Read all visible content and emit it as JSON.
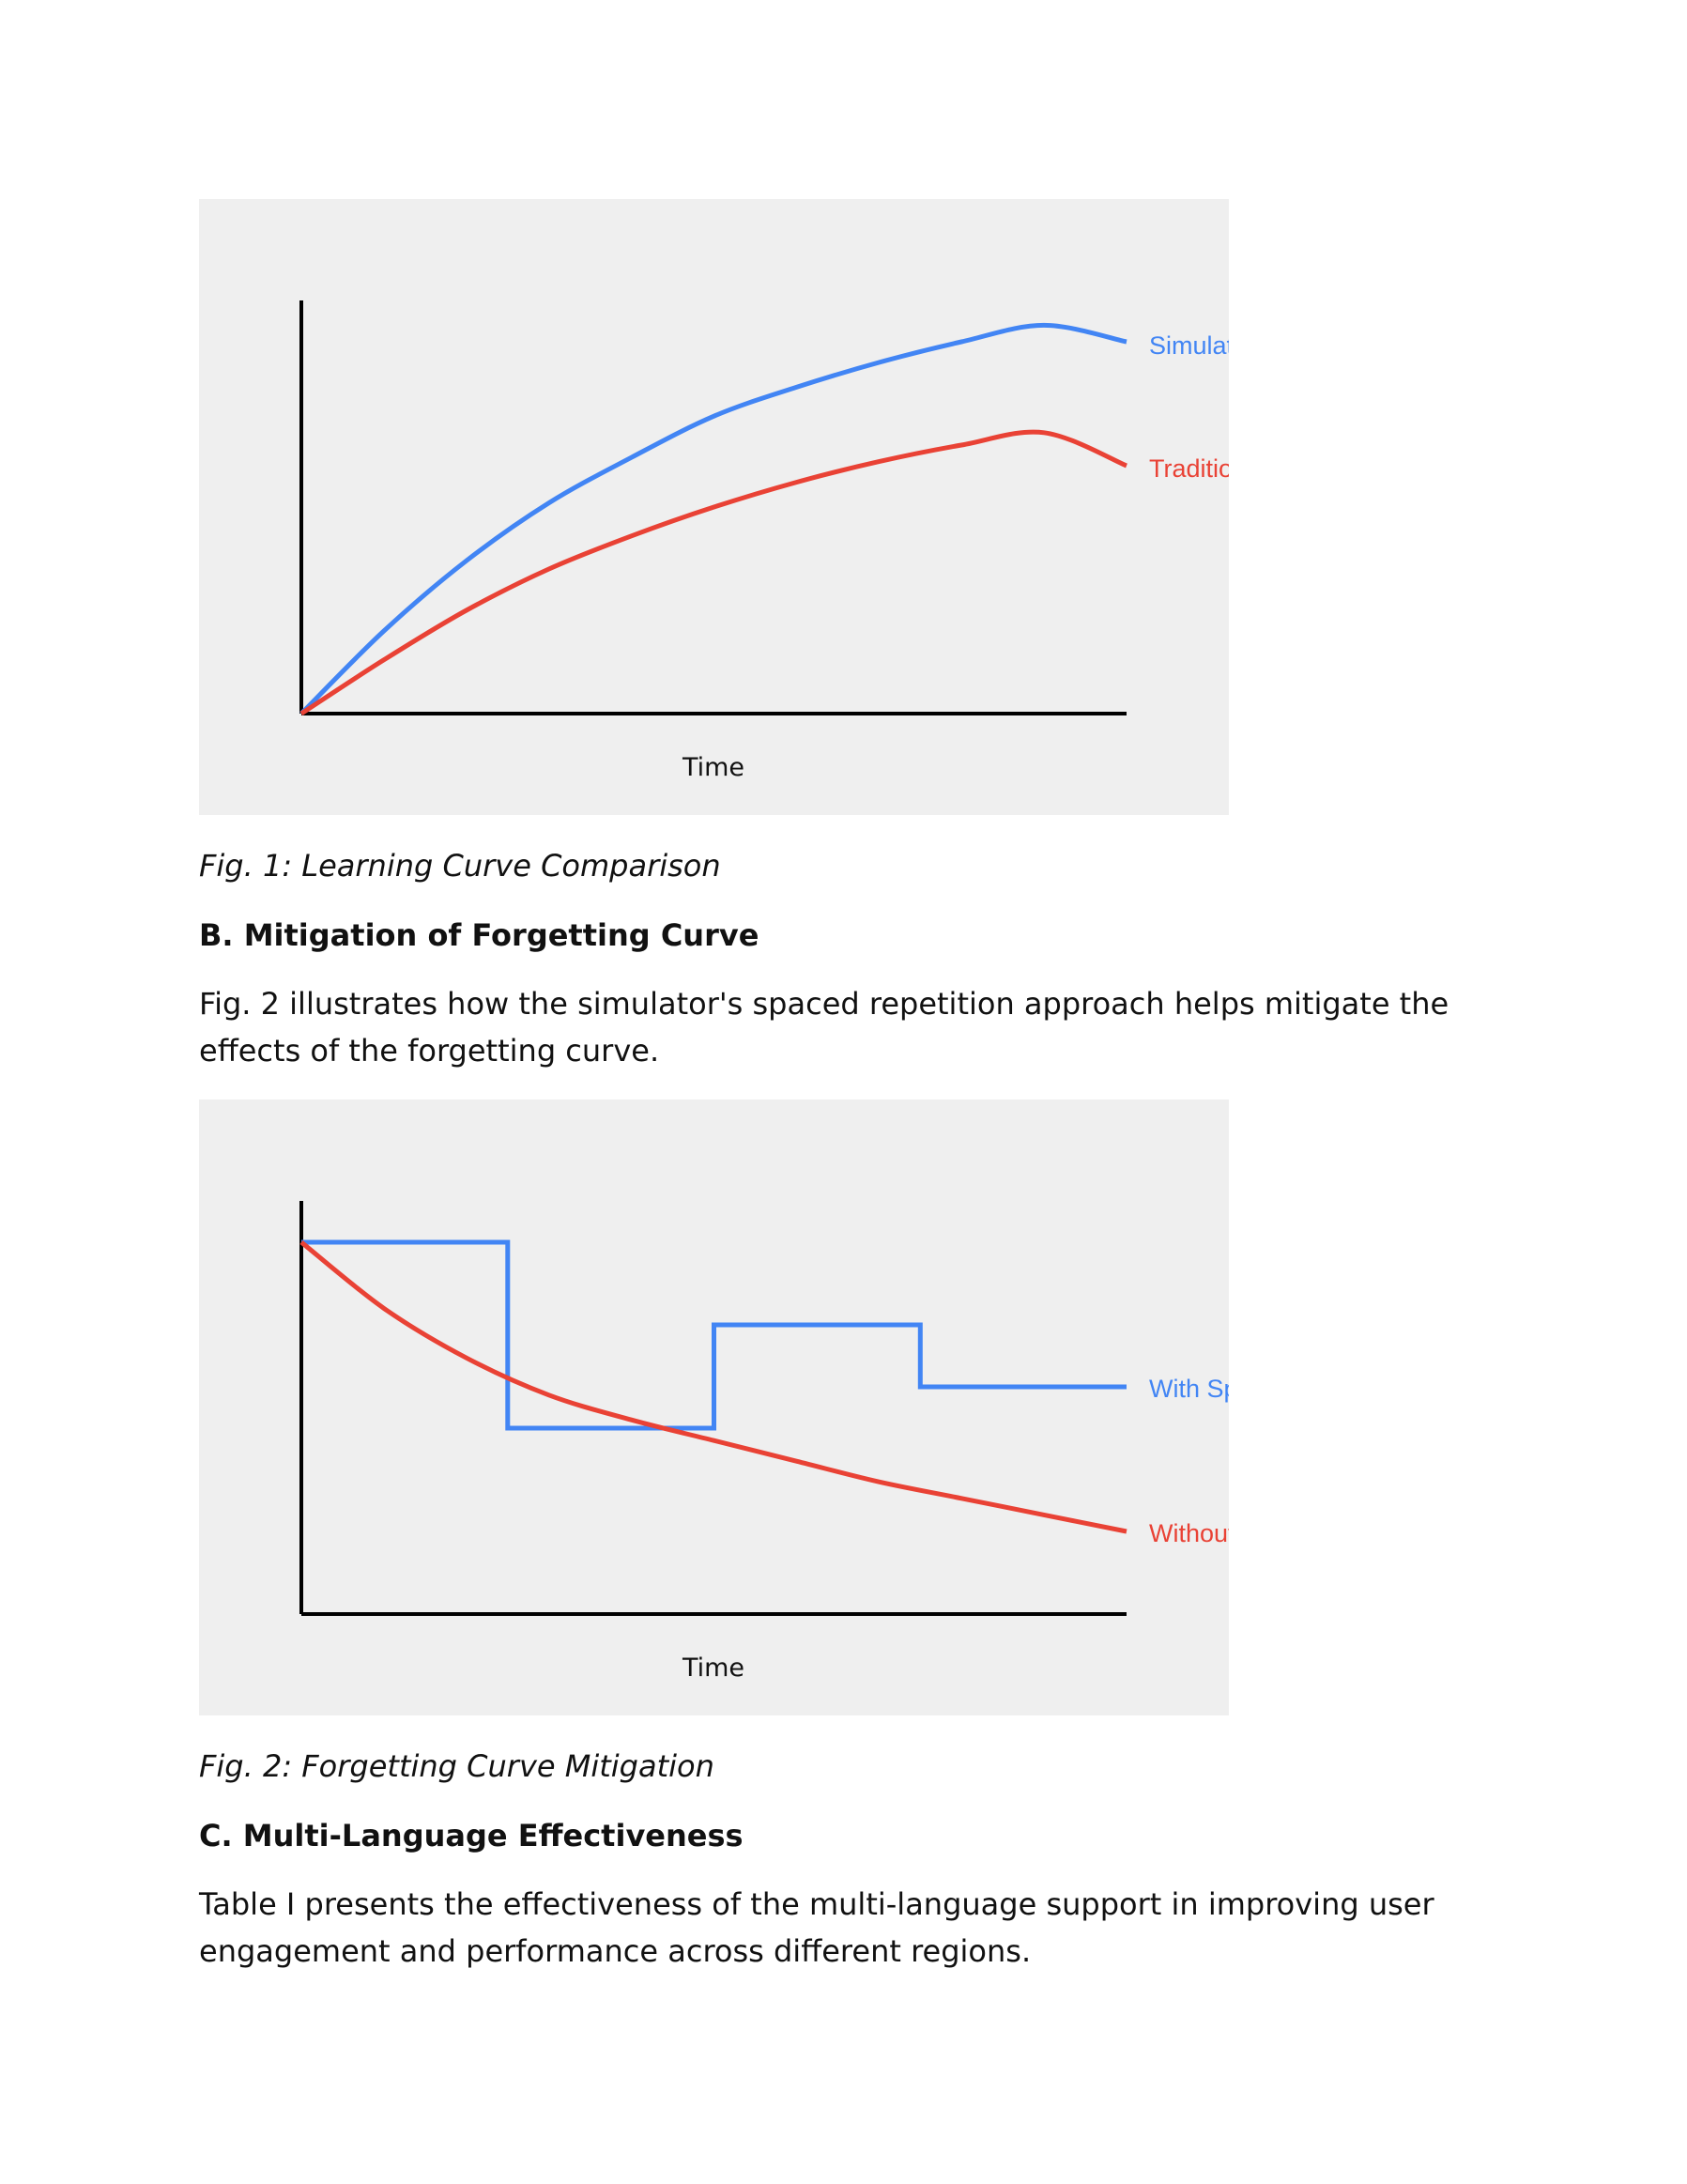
{
  "figure1": {
    "caption": "Fig. 1: Learning Curve Comparison",
    "x_axis_label": "Time",
    "label_simulator": "Simulat",
    "label_traditional": "Traditio"
  },
  "section_b": {
    "heading": "B. Mitigation of Forgetting Curve",
    "body": "Fig. 2 illustrates how the simulator's spaced repetition approach helps mitigate the effects of the forgetting curve."
  },
  "figure2": {
    "caption": "Fig. 2: Forgetting Curve Mitigation",
    "x_axis_label": "Time",
    "label_with": "With Sp",
    "label_without": "Without"
  },
  "section_c": {
    "heading": "C. Multi-Language Effectiveness",
    "body": "Table I presents the effectiveness of the multi-language support in improving user engagement and performance across different regions."
  },
  "colors": {
    "blue": "#4285f4",
    "red": "#e94235",
    "panel": "#efefef",
    "axis": "#000000"
  },
  "chart_data": [
    {
      "type": "line",
      "xlabel": "Time",
      "ylabel": "",
      "xlim": [
        0,
        1
      ],
      "ylim": [
        0,
        1
      ],
      "grid": false,
      "legend": "end-of-line labels (right)",
      "series": [
        {
          "name": "Simulat",
          "color": "#4285f4",
          "x": [
            0,
            0.1,
            0.2,
            0.3,
            0.4,
            0.5,
            0.6,
            0.7,
            0.8,
            0.9,
            1.0
          ],
          "y": [
            0,
            0.2,
            0.37,
            0.51,
            0.62,
            0.72,
            0.79,
            0.85,
            0.9,
            0.94,
            0.9
          ]
        },
        {
          "name": "Traditio",
          "color": "#e94235",
          "x": [
            0,
            0.1,
            0.2,
            0.3,
            0.4,
            0.5,
            0.6,
            0.7,
            0.8,
            0.9,
            1.0
          ],
          "y": [
            0,
            0.13,
            0.25,
            0.35,
            0.43,
            0.5,
            0.56,
            0.61,
            0.65,
            0.68,
            0.6
          ]
        }
      ]
    },
    {
      "type": "line",
      "xlabel": "Time",
      "ylabel": "",
      "xlim": [
        0,
        1
      ],
      "ylim": [
        0,
        1
      ],
      "grid": false,
      "legend": "end-of-line labels (right)",
      "series": [
        {
          "name": "With Sp",
          "color": "#4285f4",
          "step": true,
          "x": [
            0,
            0.25,
            0.25,
            0.5,
            0.5,
            0.75,
            0.75,
            1.0
          ],
          "y": [
            0.9,
            0.9,
            0.45,
            0.45,
            0.7,
            0.7,
            0.55,
            0.55
          ]
        },
        {
          "name": "Without",
          "color": "#e94235",
          "x": [
            0,
            0.1,
            0.2,
            0.3,
            0.4,
            0.5,
            0.6,
            0.7,
            0.8,
            0.9,
            1.0
          ],
          "y": [
            0.9,
            0.74,
            0.62,
            0.53,
            0.47,
            0.42,
            0.37,
            0.32,
            0.28,
            0.24,
            0.2
          ]
        }
      ]
    }
  ]
}
